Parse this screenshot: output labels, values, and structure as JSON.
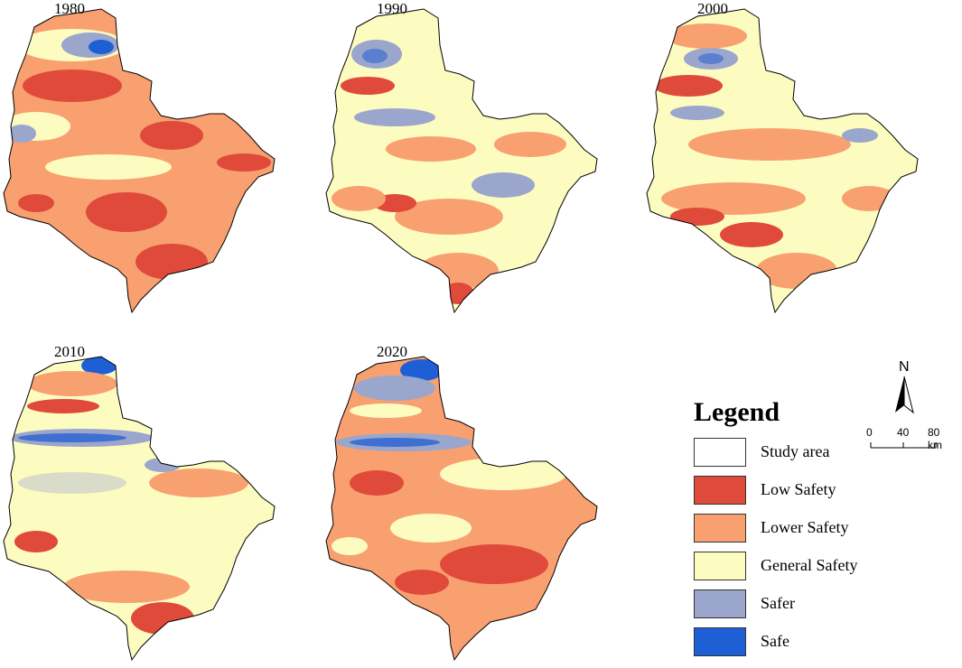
{
  "panels": [
    {
      "year": "1980"
    },
    {
      "year": "1990"
    },
    {
      "year": "2000"
    },
    {
      "year": "2010"
    },
    {
      "year": "2020"
    }
  ],
  "legend": {
    "title": "Legend",
    "items": [
      {
        "label": "Study area",
        "color": "#ffffff"
      },
      {
        "label": "Low Safety",
        "color": "#e04a3a"
      },
      {
        "label": "Lower Safety",
        "color": "#f9a070"
      },
      {
        "label": "General Safety",
        "color": "#fcfcc0"
      },
      {
        "label": "Safer",
        "color": "#9aa6cc"
      },
      {
        "label": "Safe",
        "color": "#1f5fd6"
      }
    ]
  },
  "north_arrow": {
    "label": "N"
  },
  "scale_bar": {
    "ticks": [
      "0",
      "40",
      "80 km"
    ]
  },
  "colors": {
    "low": "#e04a3a",
    "lower": "#f9a070",
    "general": "#fcfcc0",
    "safer": "#9aa6cc",
    "safe": "#1f5fd6"
  }
}
